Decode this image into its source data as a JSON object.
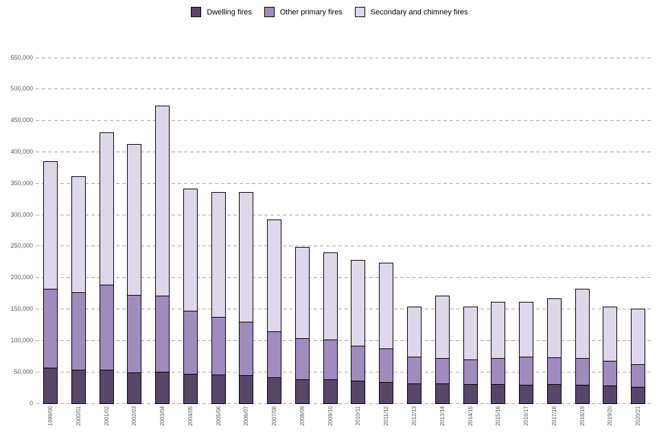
{
  "legend": {
    "items": [
      {
        "label": "Dwelling fires",
        "color": "#584669"
      },
      {
        "label": "Other primary fires",
        "color": "#a08bbf"
      },
      {
        "label": "Secondary and chimney fires",
        "color": "#ded7ea"
      }
    ]
  },
  "axis_style": {
    "grid_color": "#a6a6a6",
    "tick_label_color": "#595959",
    "bar_border_color": "#000000"
  },
  "chart_data": {
    "type": "bar",
    "stacked": true,
    "title": "",
    "xlabel": "",
    "ylabel": "",
    "grid": "horizontal-dashed",
    "legend_position": "top-center",
    "ylim": [
      0,
      550000
    ],
    "ytick_interval": 50000,
    "ytick_labels": [
      "0",
      "50,000",
      "100,000",
      "150,000",
      "200,000",
      "250,000",
      "300,000",
      "350,000",
      "400,000",
      "450,000",
      "500,000",
      "550,000"
    ],
    "categories": [
      "1999/00",
      "2000/01",
      "2001/02",
      "2002/03",
      "2003/04",
      "2004/05",
      "2005/06",
      "2006/07",
      "2007/08",
      "2008/09",
      "2009/10",
      "2010/11",
      "2011/12",
      "2012/13",
      "2013/14",
      "2014/15",
      "2015/16",
      "2016/17",
      "2017/18",
      "2018/19",
      "2019/20",
      "2020/21"
    ],
    "series": [
      {
        "name": "Dwelling fires",
        "color": "#584669",
        "values": [
          57000,
          54000,
          54000,
          49000,
          50000,
          47000,
          46000,
          45000,
          42000,
          38000,
          38000,
          36000,
          34000,
          32000,
          32000,
          31000,
          31000,
          30000,
          31000,
          30000,
          28000,
          26000
        ]
      },
      {
        "name": "Other primary fires",
        "color": "#a08bbf",
        "values": [
          125000,
          123000,
          135000,
          123000,
          121000,
          100000,
          91000,
          85000,
          73000,
          66000,
          63000,
          56000,
          53000,
          42000,
          40000,
          39000,
          41000,
          44000,
          42000,
          42000,
          40000,
          36000
        ]
      },
      {
        "name": "Secondary and chimney fires",
        "color": "#ded7ea",
        "values": [
          203000,
          184000,
          242000,
          240000,
          303000,
          195000,
          199000,
          206000,
          178000,
          145000,
          139000,
          136000,
          137000,
          80000,
          99000,
          84000,
          90000,
          88000,
          94000,
          110000,
          86000,
          89000
        ]
      }
    ],
    "totals": [
      385000,
      361000,
      431000,
      412000,
      474000,
      342000,
      336000,
      336000,
      293000,
      249000,
      240000,
      228000,
      224000,
      154000,
      171000,
      154000,
      162000,
      162000,
      167000,
      182000,
      154000,
      151000
    ]
  }
}
